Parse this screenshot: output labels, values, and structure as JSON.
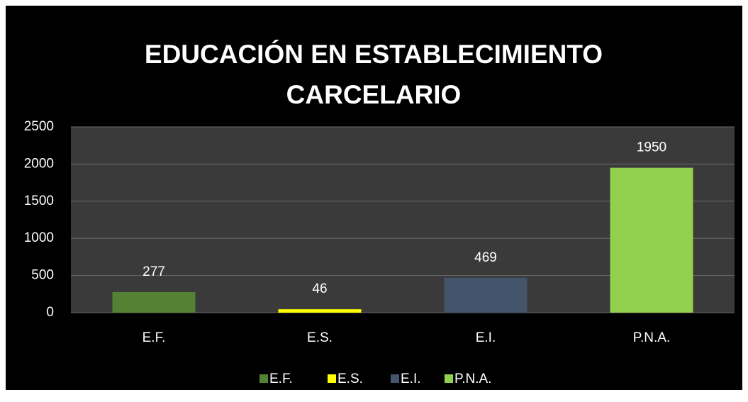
{
  "chart_data": {
    "type": "bar",
    "title": "EDUCACIÓN EN ESTABLECIMIENTO CARCELARIO",
    "categories": [
      "E.F.",
      "E.S.",
      "E.I.",
      "P.N.A."
    ],
    "values": [
      277,
      46,
      469,
      1950
    ],
    "colors": [
      "#548235",
      "#ffff00",
      "#44546a",
      "#92d050"
    ],
    "ylim": [
      0,
      2500
    ],
    "yticks": [
      0,
      500,
      1000,
      1500,
      2000,
      2500
    ],
    "grid": true,
    "legend": "bottom"
  }
}
